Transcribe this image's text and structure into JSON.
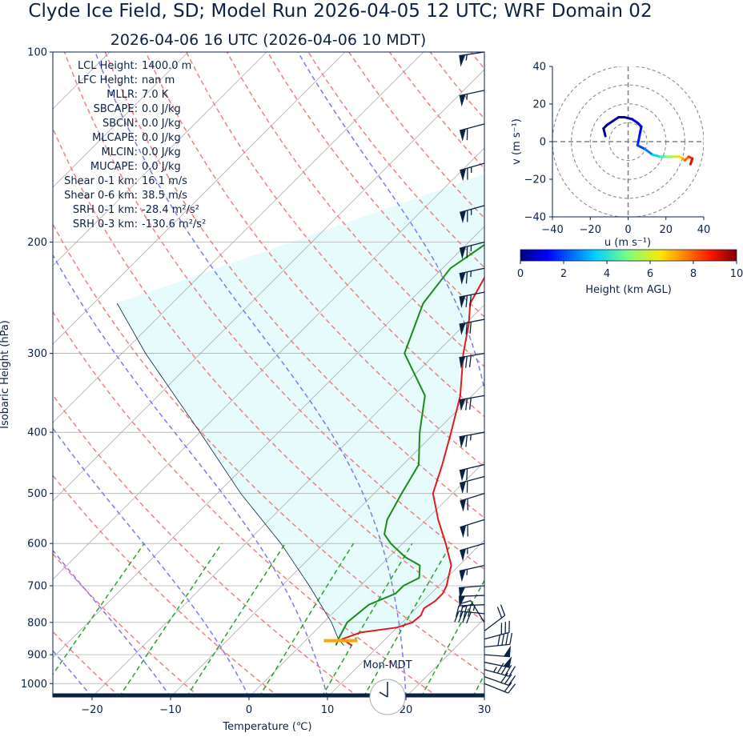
{
  "header": {
    "title": "Clyde Ice Field, SD; Model Run 2026-04-05 12 UTC; WRF Domain 02",
    "subtitle": "2026-04-06 16 UTC  (2026-04-06 10 MDT)"
  },
  "colors": {
    "temperature": "#e31a1c",
    "dewpoint": "#1a8a1a",
    "dry_adiabat": "#f08080",
    "moist_adiabat": "#7b7bf0",
    "mixing_ratio": "#2ca02c",
    "cape_fill": "#e6fbfb",
    "lcl_marker": "#ffa500",
    "text": "#0a2244"
  },
  "clock": {
    "label": "Mon-MDT"
  },
  "chart_data": [
    {
      "type": "skew-t",
      "xlabel": "Temperature (℃)",
      "ylabel": "Isobaric Height (hPa)",
      "xlim": [
        -25,
        30
      ],
      "ylim": [
        1050,
        100
      ],
      "x_ticks": [
        -20,
        -10,
        0,
        10,
        20,
        30
      ],
      "y_ticks": [
        100,
        200,
        300,
        400,
        500,
        600,
        700,
        800,
        900,
        1000
      ],
      "grid": true,
      "indices": [
        {
          "label": "LCL Height:",
          "value": "1400.0 m"
        },
        {
          "label": "LFC Height:",
          "value": "nan m"
        },
        {
          "label": "MLLR:",
          "value": "7.0 K"
        },
        {
          "label": "SBCAPE:",
          "value": "0.0 J/kg"
        },
        {
          "label": "SBCIN:",
          "value": "0.0 J/kg"
        },
        {
          "label": "MLCAPE:",
          "value": "0.0 J/kg"
        },
        {
          "label": "MLCIN:",
          "value": "0.0 J/kg"
        },
        {
          "label": "MUCAPE:",
          "value": "0.0 J/kg"
        },
        {
          "label": "Shear 0-1 km:",
          "value": "16.1 m/s"
        },
        {
          "label": "Shear 0-6 km:",
          "value": "38.5 m/s"
        },
        {
          "label": "SRH 0-1 km:",
          "value": "-28.4 m²/s²"
        },
        {
          "label": "SRH 0-3 km:",
          "value": "-130.6 m²/s²"
        }
      ],
      "temperature": [
        [
          870,
          6.5
        ],
        [
          850,
          4.5
        ],
        [
          830,
          6.0
        ],
        [
          815,
          10.0
        ],
        [
          800,
          11.3
        ],
        [
          780,
          11.5
        ],
        [
          760,
          11.0
        ],
        [
          740,
          11.5
        ],
        [
          720,
          11.5
        ],
        [
          700,
          11.0
        ],
        [
          680,
          10.2
        ],
        [
          650,
          9.0
        ],
        [
          600,
          5.5
        ],
        [
          550,
          1.5
        ],
        [
          500,
          -2.5
        ],
        [
          450,
          -5.0
        ],
        [
          400,
          -8.0
        ],
        [
          350,
          -11.5
        ],
        [
          300,
          -16.5
        ],
        [
          270,
          -19.5
        ],
        [
          250,
          -22.0
        ],
        [
          220,
          -24.0
        ],
        [
          200,
          -22.0
        ],
        [
          180,
          -18.0
        ],
        [
          160,
          -15.5
        ],
        [
          140,
          -13.0
        ],
        [
          120,
          -11.0
        ],
        [
          110,
          -9.5
        ],
        [
          100,
          -8.0
        ]
      ],
      "dewpoint": [
        [
          870,
          4.5
        ],
        [
          850,
          4.0
        ],
        [
          800,
          3.0
        ],
        [
          750,
          3.5
        ],
        [
          720,
          5.5
        ],
        [
          700,
          5.5
        ],
        [
          680,
          6.5
        ],
        [
          650,
          5.0
        ],
        [
          630,
          2.0
        ],
        [
          600,
          -1.5
        ],
        [
          580,
          -3.5
        ],
        [
          550,
          -5.0
        ],
        [
          500,
          -6.5
        ],
        [
          450,
          -8.0
        ],
        [
          400,
          -12.0
        ],
        [
          350,
          -16.0
        ],
        [
          300,
          -24.0
        ],
        [
          250,
          -28.0
        ],
        [
          220,
          -29.0
        ],
        [
          200,
          -27.5
        ],
        [
          180,
          -26.5
        ],
        [
          160,
          -24.5
        ],
        [
          140,
          -21.0
        ],
        [
          120,
          -17.0
        ],
        [
          110,
          -15.0
        ],
        [
          100,
          -13.0
        ]
      ],
      "parcel": [
        [
          870,
          5.5
        ],
        [
          850,
          4.0
        ],
        [
          800,
          1.0
        ],
        [
          700,
          -6.5
        ],
        [
          600,
          -15.5
        ],
        [
          500,
          -27.0
        ],
        [
          400,
          -40.0
        ],
        [
          300,
          -57.0
        ],
        [
          250,
          -67.0
        ]
      ],
      "lcl": {
        "pressure": 855,
        "temperature": 4.5
      },
      "wind_barbs": [
        {
          "p": 1000,
          "u": -10,
          "v": 4
        },
        {
          "p": 975,
          "u": -14,
          "v": 5
        },
        {
          "p": 950,
          "u": -22,
          "v": 6
        },
        {
          "p": 925,
          "u": -24,
          "v": 5
        },
        {
          "p": 900,
          "u": -25,
          "v": 2
        },
        {
          "p": 875,
          "u": -20,
          "v": -2
        },
        {
          "p": 850,
          "u": -15,
          "v": -4
        },
        {
          "p": 825,
          "u": -8,
          "v": -6
        },
        {
          "p": 800,
          "u": 5,
          "v": -8
        },
        {
          "p": 775,
          "u": 20,
          "v": -2
        },
        {
          "p": 750,
          "u": 24,
          "v": 1
        },
        {
          "p": 725,
          "u": 25,
          "v": 1
        },
        {
          "p": 700,
          "u": 26,
          "v": 2
        },
        {
          "p": 650,
          "u": 27,
          "v": 6
        },
        {
          "p": 600,
          "u": 28,
          "v": 8
        },
        {
          "p": 550,
          "u": 29,
          "v": 9
        },
        {
          "p": 500,
          "u": 29,
          "v": 9
        },
        {
          "p": 470,
          "u": 30,
          "v": 8
        },
        {
          "p": 450,
          "u": 30,
          "v": 7
        },
        {
          "p": 400,
          "u": 33,
          "v": 6
        },
        {
          "p": 350,
          "u": 35,
          "v": 6
        },
        {
          "p": 300,
          "u": 36,
          "v": 6
        },
        {
          "p": 265,
          "u": 36,
          "v": 7
        },
        {
          "p": 240,
          "u": 36,
          "v": 7
        },
        {
          "p": 220,
          "u": 33,
          "v": 7
        },
        {
          "p": 200,
          "u": 32,
          "v": 8
        },
        {
          "p": 175,
          "u": 32,
          "v": 9
        },
        {
          "p": 150,
          "u": 31,
          "v": 9
        },
        {
          "p": 130,
          "u": 30,
          "v": 8
        },
        {
          "p": 115,
          "u": 28,
          "v": 6
        },
        {
          "p": 100,
          "u": 27,
          "v": 4
        }
      ]
    },
    {
      "type": "hodograph",
      "xlabel": "u (m s⁻¹)",
      "ylabel": "v (m s⁻¹)",
      "xlim": [
        -40,
        40
      ],
      "ylim": [
        -40,
        40
      ],
      "ticks": [
        -40,
        -20,
        0,
        20,
        40
      ],
      "rings": [
        10,
        20,
        30,
        40
      ],
      "points": [
        {
          "u": -12,
          "v": 3,
          "h": 0.0
        },
        {
          "u": -13,
          "v": 7,
          "h": 0.1
        },
        {
          "u": -11,
          "v": 9,
          "h": 0.2
        },
        {
          "u": -8,
          "v": 11,
          "h": 0.3
        },
        {
          "u": -5,
          "v": 13,
          "h": 0.4
        },
        {
          "u": -2,
          "v": 13,
          "h": 0.5
        },
        {
          "u": 2,
          "v": 12,
          "h": 0.7
        },
        {
          "u": 5,
          "v": 10,
          "h": 0.9
        },
        {
          "u": 7,
          "v": 8,
          "h": 1.1
        },
        {
          "u": 6,
          "v": 3,
          "h": 1.4
        },
        {
          "u": 5,
          "v": -2,
          "h": 1.7
        },
        {
          "u": 9,
          "v": -4,
          "h": 2.2
        },
        {
          "u": 13,
          "v": -7,
          "h": 3.0
        },
        {
          "u": 17,
          "v": -8,
          "h": 4.0
        },
        {
          "u": 20,
          "v": -8,
          "h": 4.8
        },
        {
          "u": 24,
          "v": -8,
          "h": 5.6
        },
        {
          "u": 27,
          "v": -8,
          "h": 6.3
        },
        {
          "u": 29,
          "v": -9,
          "h": 7.0
        },
        {
          "u": 30,
          "v": -10,
          "h": 7.6
        },
        {
          "u": 32,
          "v": -8,
          "h": 8.2
        },
        {
          "u": 34,
          "v": -9,
          "h": 8.8
        },
        {
          "u": 33,
          "v": -12,
          "h": 9.5
        }
      ]
    },
    {
      "type": "colorbar",
      "label": "Height (km AGL)",
      "range": [
        0,
        10
      ],
      "ticks": [
        0,
        2,
        4,
        6,
        8,
        10
      ],
      "colormap": "jet"
    }
  ]
}
